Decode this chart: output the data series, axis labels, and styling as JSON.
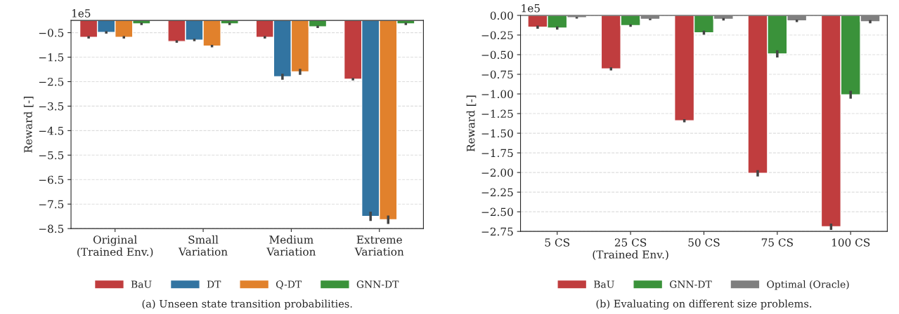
{
  "chart_data": [
    {
      "type": "bar",
      "ylabel": "Reward [-]",
      "categories": [
        "Original\n(Trained Env.)",
        "Small\nVariation",
        "Medium\nVariation",
        "Extreme\nVariation"
      ],
      "series": [
        {
          "name": "BaU",
          "color": "#c03d3e",
          "values": [
            -0.69,
            -0.86,
            -0.69,
            -2.4
          ],
          "errors": [
            0.05,
            0.05,
            0.05,
            0.05
          ]
        },
        {
          "name": "DT",
          "color": "#3274a1",
          "values": [
            -0.49,
            -0.8,
            -2.3,
            -8.0
          ],
          "errors": [
            0.05,
            0.05,
            0.12,
            0.19
          ]
        },
        {
          "name": "Q-DT",
          "color": "#e1812c",
          "values": [
            -0.69,
            -1.05,
            -2.1,
            -8.14
          ],
          "errors": [
            0.05,
            0.05,
            0.12,
            0.17
          ]
        },
        {
          "name": "GNN-DT",
          "color": "#3a923a",
          "values": [
            -0.14,
            -0.14,
            -0.26,
            -0.14
          ],
          "errors": [
            0.05,
            0.05,
            0.05,
            0.05
          ]
        }
      ],
      "ylim": [
        -8.5,
        0
      ],
      "yticks": [
        {
          "value": -0.5,
          "label": "−0.5"
        },
        {
          "value": -1.5,
          "label": "−1.5"
        },
        {
          "value": -2.5,
          "label": "−2.5"
        },
        {
          "value": -3.5,
          "label": "−3.5"
        },
        {
          "value": -4.5,
          "label": "−4.5"
        },
        {
          "value": -5.5,
          "label": "−5.5"
        },
        {
          "value": -6.5,
          "label": "−6.5"
        },
        {
          "value": -7.5,
          "label": "−7.5"
        },
        {
          "value": -8.5,
          "label": "−8.5"
        }
      ],
      "grid": "y",
      "legend": "bottom",
      "annotations": [
        "1e5",
        "(a) Unseen state transition probabilities."
      ]
    },
    {
      "type": "bar",
      "ylabel": "Reward [-]",
      "categories": [
        "5 CS",
        "25 CS\n(Trained Env.)",
        "50 CS",
        "75 CS",
        "100 CS"
      ],
      "series": [
        {
          "name": "BaU",
          "color": "#c03d3e",
          "values": [
            -0.15,
            -0.68,
            -1.34,
            -2.01,
            -2.69
          ],
          "errors": [
            0.02,
            0.02,
            0.02,
            0.04,
            0.04
          ]
        },
        {
          "name": "GNN-DT",
          "color": "#3a923a",
          "values": [
            -0.16,
            -0.13,
            -0.22,
            -0.49,
            -1.01
          ],
          "errors": [
            0.02,
            0.015,
            0.025,
            0.045,
            0.05
          ]
        },
        {
          "name": "Optimal (Oracle)",
          "color": "#7f7f7f",
          "values": [
            -0.03,
            -0.05,
            -0.05,
            -0.07,
            -0.08
          ],
          "errors": [
            0.01,
            0.01,
            0.015,
            0.015,
            0.02
          ]
        }
      ],
      "ylim": [
        -2.75,
        0
      ],
      "yticks": [
        {
          "value": 0,
          "label": "0.00"
        },
        {
          "value": -0.25,
          "label": "−0.25"
        },
        {
          "value": -0.5,
          "label": "−0.50"
        },
        {
          "value": -0.75,
          "label": "−0.75"
        },
        {
          "value": -1.0,
          "label": "−1.00"
        },
        {
          "value": -1.25,
          "label": "−1.25"
        },
        {
          "value": -1.5,
          "label": "−1.50"
        },
        {
          "value": -1.75,
          "label": "−1.75"
        },
        {
          "value": -2.0,
          "label": "−2.00"
        },
        {
          "value": -2.25,
          "label": "−2.25"
        },
        {
          "value": -2.5,
          "label": "−2.50"
        },
        {
          "value": -2.75,
          "label": "−2.75"
        }
      ],
      "grid": "y",
      "legend": "bottom",
      "annotations": [
        "1e5",
        "(b) Evaluating on different size problems."
      ]
    }
  ]
}
